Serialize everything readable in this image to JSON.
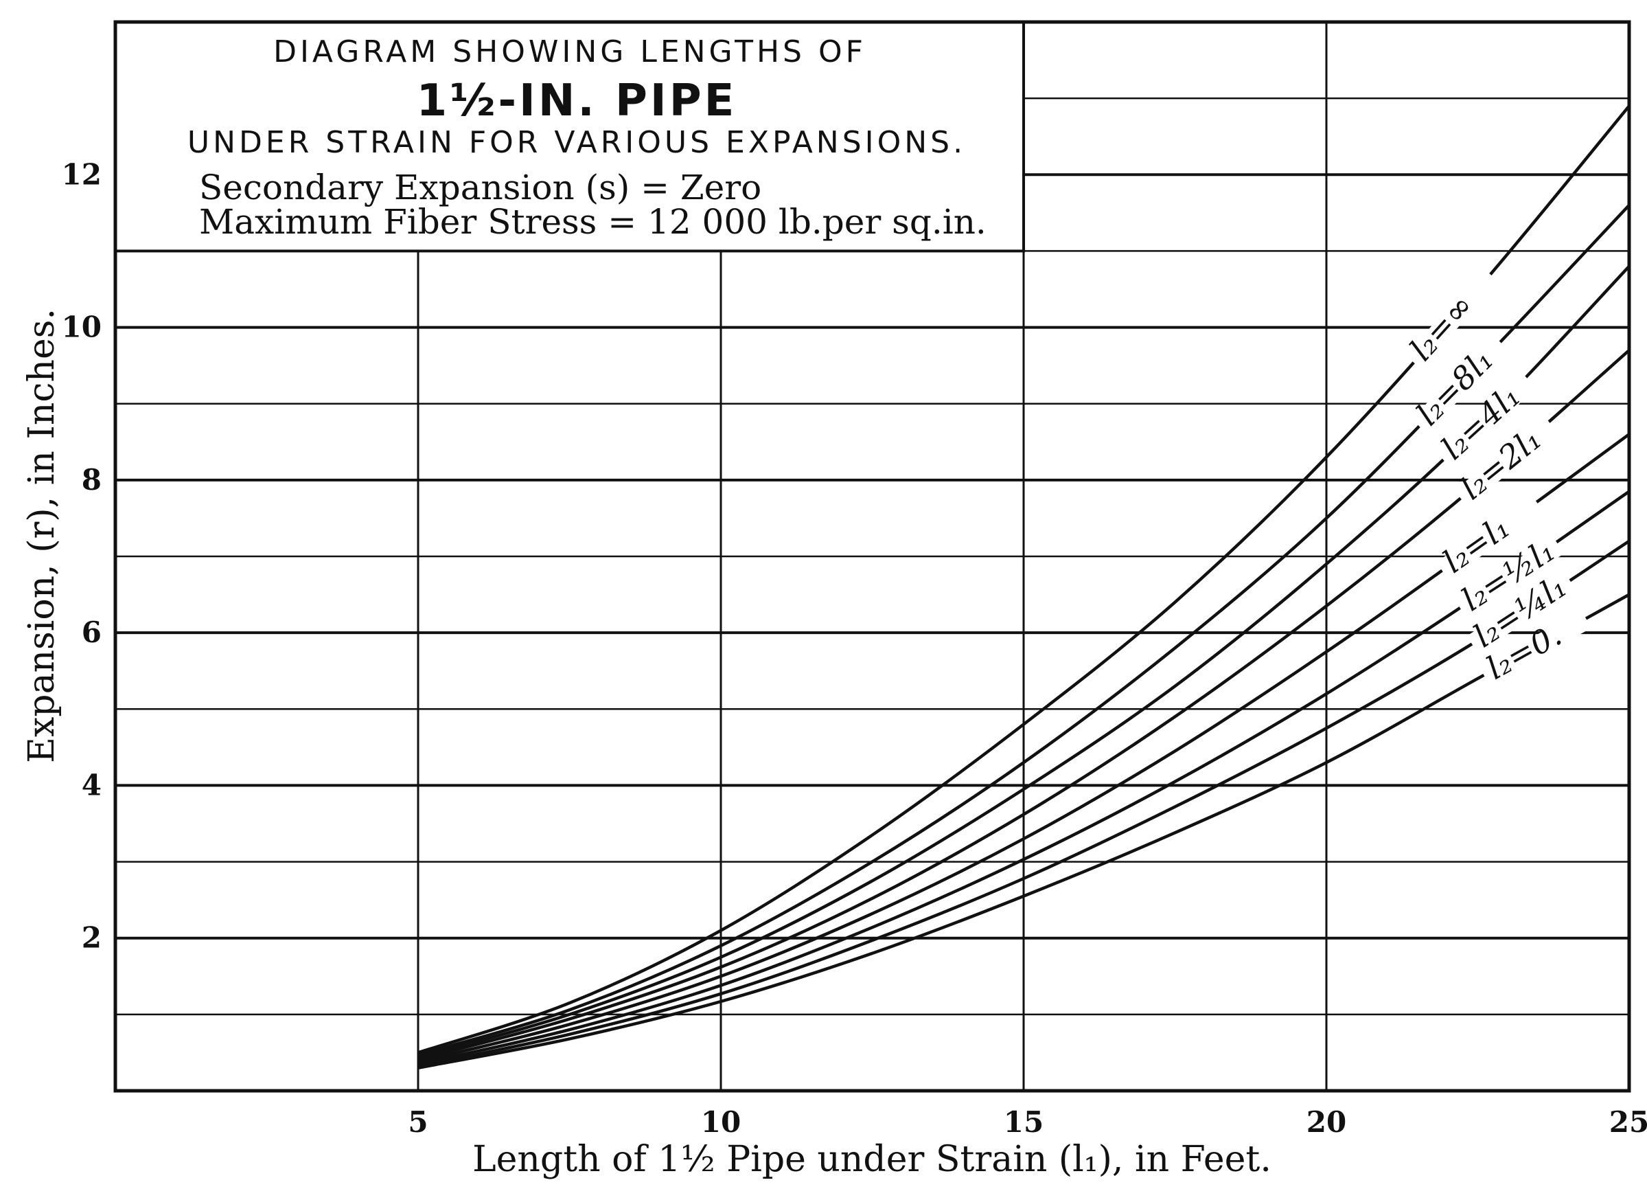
{
  "chart_data": {
    "type": "line",
    "title_lines": [
      "DIAGRAM SHOWING LENGTHS OF",
      "1½-IN. PIPE",
      "UNDER STRAIN FOR VARIOUS EXPANSIONS."
    ],
    "subtitle_lines": [
      "Secondary Expansion (s) = Zero",
      "Maximum Fiber Stress = 12 000 lb.per sq.in."
    ],
    "xlabel": "Length of 1½ Pipe under Strain (l₁), in Feet.",
    "ylabel": "Expansion, (r), in Inches.",
    "xlim": [
      0,
      25
    ],
    "ylim": [
      0,
      14
    ],
    "x_ticks": [
      "5",
      "10",
      "15",
      "20",
      "25"
    ],
    "y_ticks": [
      "2",
      "4",
      "6",
      "8",
      "10",
      "12"
    ],
    "grid": true,
    "x": [
      5,
      7.5,
      10,
      12.5,
      15,
      17.5,
      20,
      22.5,
      25
    ],
    "series": [
      {
        "name": "l₂=∞",
        "values": [
          0.5,
          1.15,
          2.1,
          3.35,
          4.8,
          6.4,
          8.3,
          10.5,
          12.9
        ]
      },
      {
        "name": "l₂=8l₁",
        "values": [
          0.47,
          1.06,
          1.9,
          3.0,
          4.3,
          5.8,
          7.5,
          9.5,
          11.6
        ]
      },
      {
        "name": "l₂=4l₁",
        "values": [
          0.44,
          1.0,
          1.75,
          2.75,
          3.95,
          5.3,
          6.9,
          8.7,
          10.8
        ]
      },
      {
        "name": "l₂=2l₁",
        "values": [
          0.41,
          0.94,
          1.62,
          2.52,
          3.62,
          4.9,
          6.35,
          7.95,
          9.7
        ]
      },
      {
        "name": "l₂=l₁",
        "values": [
          0.38,
          0.87,
          1.5,
          2.32,
          3.3,
          4.45,
          5.75,
          7.15,
          8.6
        ]
      },
      {
        "name": "l₂=½l₁",
        "values": [
          0.35,
          0.8,
          1.38,
          2.14,
          3.03,
          4.05,
          5.2,
          6.48,
          7.85
        ]
      },
      {
        "name": "l₂=¼l₁",
        "values": [
          0.32,
          0.74,
          1.27,
          1.97,
          2.78,
          3.72,
          4.75,
          5.9,
          7.2
        ]
      },
      {
        "name": "l₂=0.",
        "values": [
          0.3,
          0.68,
          1.17,
          1.8,
          2.55,
          3.38,
          4.3,
          5.4,
          6.5
        ]
      }
    ],
    "line_color": "#111111"
  }
}
